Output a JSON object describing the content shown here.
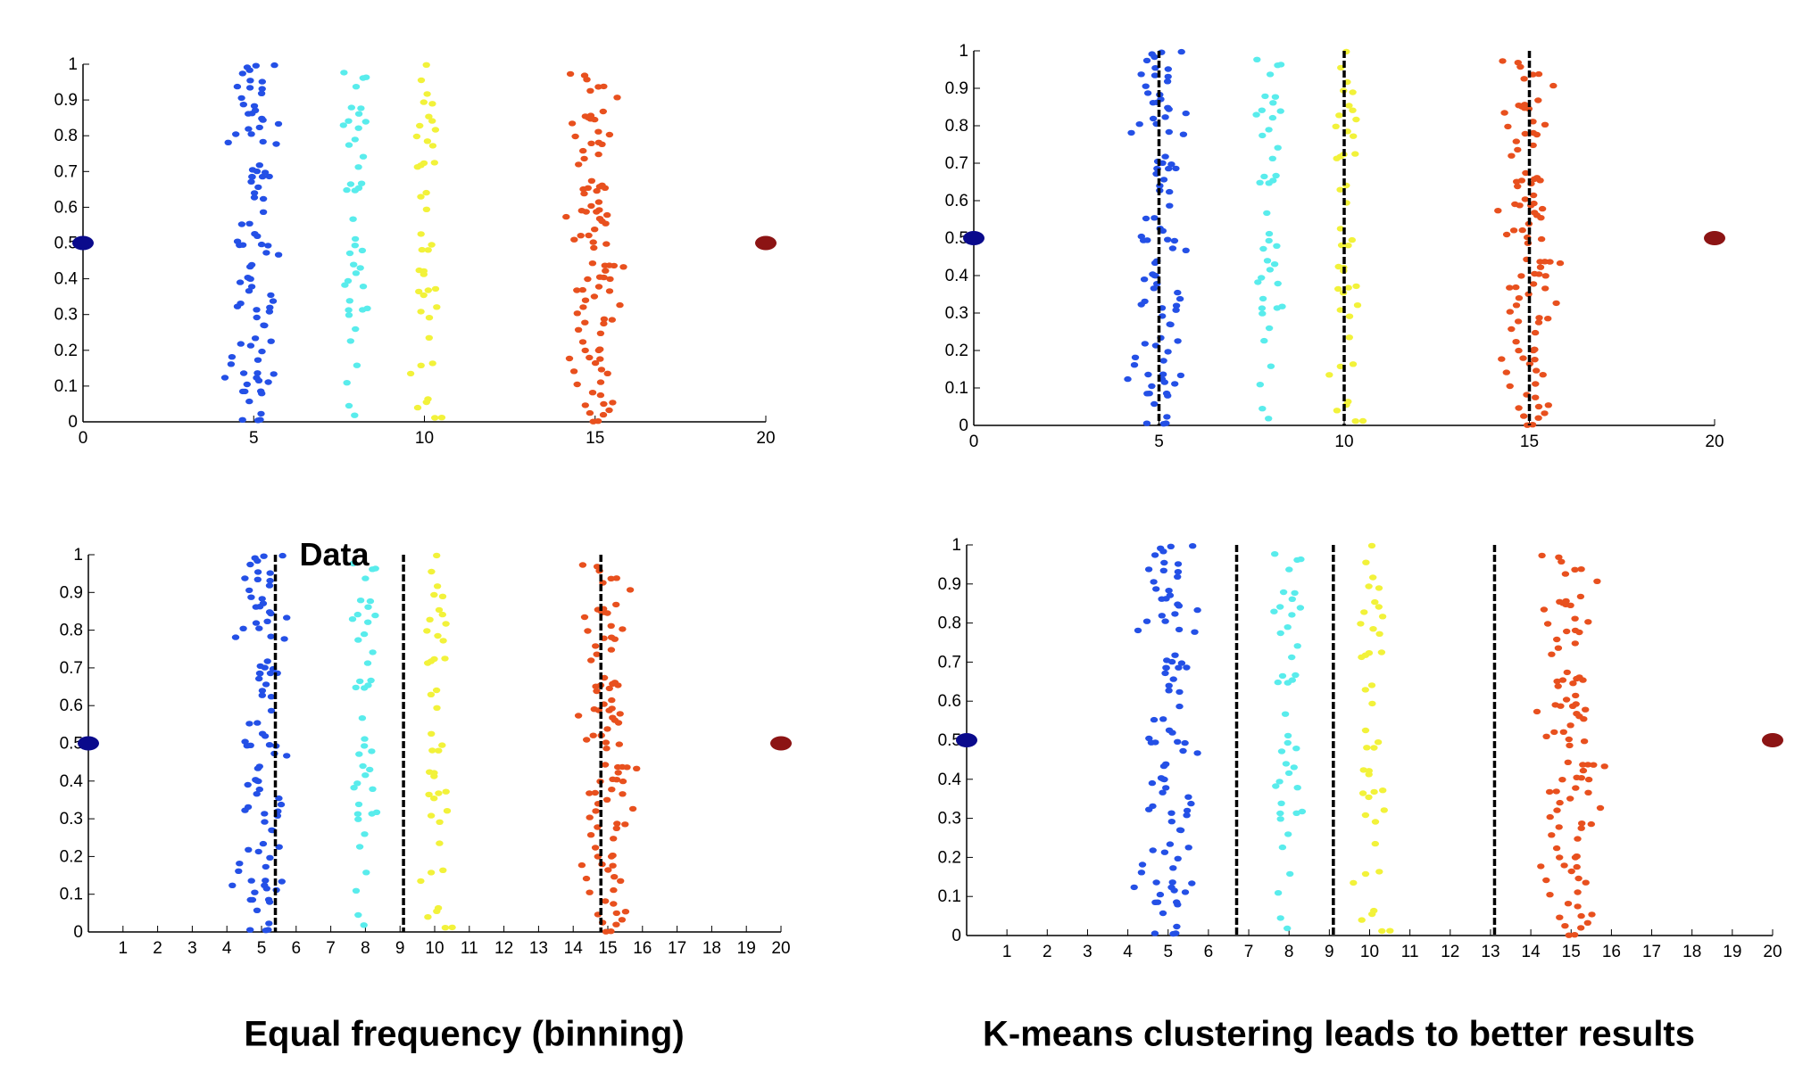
{
  "captions": {
    "left": "Equal frequency (binning)",
    "right": "K-means clustering leads to better results"
  },
  "colors": {
    "cluster1": "#2450e6",
    "cluster2": "#59ecec",
    "cluster3": "#f2f23a",
    "cluster4": "#e8501e",
    "left_endpoint": "#0a0a8c",
    "right_endpoint": "#8c1414",
    "boundary": "#000000"
  },
  "chart_data": [
    {
      "type": "scatter",
      "title": "",
      "annotation": "",
      "xlim": [
        0,
        20
      ],
      "ylim": [
        0,
        1
      ],
      "xticks": [
        0,
        5,
        10,
        15,
        20
      ],
      "yticks": [
        0,
        0.1,
        0.2,
        0.3,
        0.4,
        0.5,
        0.6,
        0.7,
        0.8,
        0.9,
        1
      ],
      "grid": false,
      "endpoints": [
        {
          "x": 0,
          "y": 0.5
        },
        {
          "x": 20,
          "y": 0.5
        }
      ],
      "boundaries": [],
      "clusters": [
        {
          "center": 5,
          "spread": 1.1,
          "count": 95
        },
        {
          "center": 8,
          "spread": 0.55,
          "count": 42
        },
        {
          "center": 10,
          "spread": 0.55,
          "count": 42
        },
        {
          "center": 15,
          "spread": 0.95,
          "count": 100
        }
      ]
    },
    {
      "type": "scatter",
      "title": "",
      "annotation": "",
      "xlim": [
        0,
        20
      ],
      "ylim": [
        0,
        1
      ],
      "xticks": [
        0,
        5,
        10,
        15,
        20
      ],
      "yticks": [
        0,
        0.1,
        0.2,
        0.3,
        0.4,
        0.5,
        0.6,
        0.7,
        0.8,
        0.9,
        1
      ],
      "grid": false,
      "endpoints": [
        {
          "x": 0,
          "y": 0.5
        },
        {
          "x": 20,
          "y": 0.5
        }
      ],
      "boundaries": [
        5,
        10,
        15
      ],
      "clusters": [
        {
          "center": 5,
          "spread": 1.1,
          "count": 95
        },
        {
          "center": 8,
          "spread": 0.55,
          "count": 42
        },
        {
          "center": 10,
          "spread": 0.55,
          "count": 42
        },
        {
          "center": 15,
          "spread": 0.95,
          "count": 100
        }
      ]
    },
    {
      "type": "scatter",
      "title": "",
      "annotation": "Data",
      "xlim": [
        0,
        20
      ],
      "ylim": [
        0,
        1
      ],
      "xticks": [
        1,
        2,
        3,
        4,
        5,
        6,
        7,
        8,
        9,
        10,
        11,
        12,
        13,
        14,
        15,
        16,
        17,
        18,
        19,
        20
      ],
      "yticks": [
        0,
        0.1,
        0.2,
        0.3,
        0.4,
        0.5,
        0.6,
        0.7,
        0.8,
        0.9,
        1
      ],
      "grid": false,
      "endpoints": [
        {
          "x": 0,
          "y": 0.5
        },
        {
          "x": 20,
          "y": 0.5
        }
      ],
      "boundaries": [
        5.4,
        9.1,
        14.8
      ],
      "clusters": [
        {
          "center": 5,
          "spread": 1.1,
          "count": 95
        },
        {
          "center": 8,
          "spread": 0.55,
          "count": 42
        },
        {
          "center": 10,
          "spread": 0.55,
          "count": 42
        },
        {
          "center": 15,
          "spread": 0.95,
          "count": 100
        }
      ]
    },
    {
      "type": "scatter",
      "title": "",
      "annotation": "",
      "xlim": [
        0,
        20
      ],
      "ylim": [
        0,
        1
      ],
      "xticks": [
        1,
        2,
        3,
        4,
        5,
        6,
        7,
        8,
        9,
        10,
        11,
        12,
        13,
        14,
        15,
        16,
        17,
        18,
        19,
        20
      ],
      "yticks": [
        0,
        0.1,
        0.2,
        0.3,
        0.4,
        0.5,
        0.6,
        0.7,
        0.8,
        0.9,
        1
      ],
      "grid": false,
      "endpoints": [
        {
          "x": 0,
          "y": 0.5
        },
        {
          "x": 20,
          "y": 0.5
        }
      ],
      "boundaries": [
        6.7,
        9.1,
        13.1
      ],
      "clusters": [
        {
          "center": 5,
          "spread": 1.1,
          "count": 95
        },
        {
          "center": 8,
          "spread": 0.55,
          "count": 42
        },
        {
          "center": 10,
          "spread": 0.55,
          "count": 42
        },
        {
          "center": 15,
          "spread": 0.95,
          "count": 100
        }
      ]
    }
  ]
}
